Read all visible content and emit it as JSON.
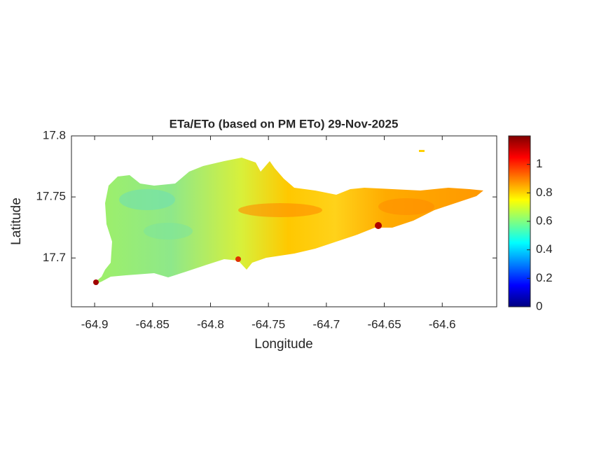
{
  "chart_data": {
    "type": "map",
    "title": "ETa/ETo (based on PM ETo) 29-Nov-2025",
    "x_label": "Longitude",
    "y_label": "Latitude",
    "xlim": [
      -64.92,
      -64.553
    ],
    "ylim": [
      17.66,
      17.8
    ],
    "xticks": [
      -64.9,
      -64.85,
      -64.8,
      -64.75,
      -64.7,
      -64.65,
      -64.6
    ],
    "yticks": [
      17.7,
      17.75,
      17.8
    ],
    "colormap": "jet",
    "clim": [
      0,
      1.2
    ],
    "cticks": [
      0,
      0.2,
      0.4,
      0.6,
      0.8,
      1
    ]
  }
}
